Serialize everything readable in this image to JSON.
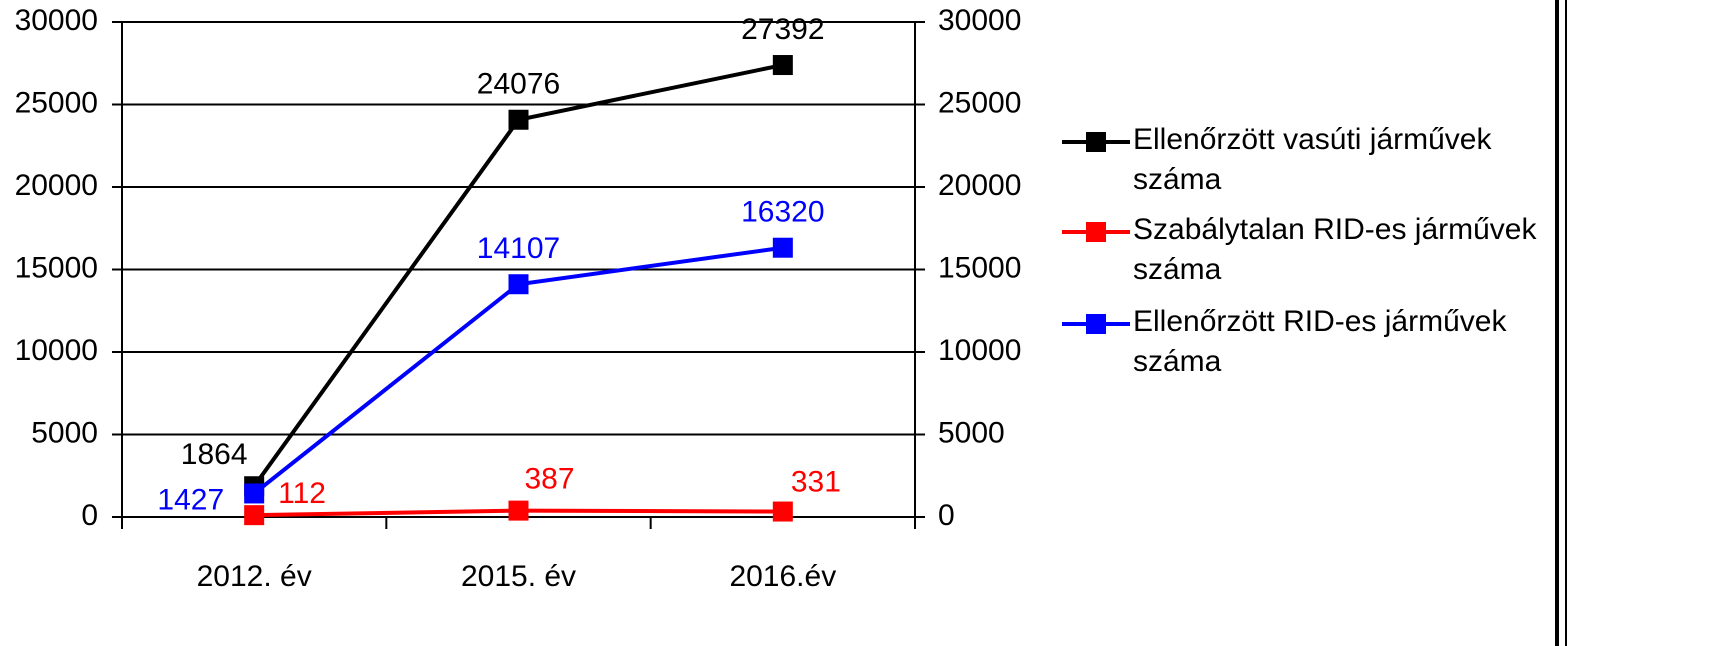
{
  "chart_data": {
    "type": "line",
    "categories": [
      "2012. év",
      "2015. év",
      "2016.év"
    ],
    "series": [
      {
        "name": "Ellenőrzött vasúti járművek száma",
        "color": "#000000",
        "values": [
          1864,
          24076,
          27392
        ]
      },
      {
        "name": "Szabálytalan RID-es járművek száma",
        "color": "#ff0000",
        "values": [
          112,
          387,
          331
        ]
      },
      {
        "name": "Ellenőrzött RID-es járművek száma",
        "color": "#0000ff",
        "values": [
          1427,
          14107,
          16320
        ]
      }
    ],
    "ylim": [
      0,
      30000
    ],
    "yticks": [
      0,
      5000,
      10000,
      15000,
      20000,
      25000,
      30000
    ],
    "y2lim": [
      0,
      30000
    ],
    "y2ticks": [
      0,
      5000,
      10000,
      15000,
      20000,
      25000,
      30000
    ],
    "grid": true,
    "legend": "right"
  }
}
